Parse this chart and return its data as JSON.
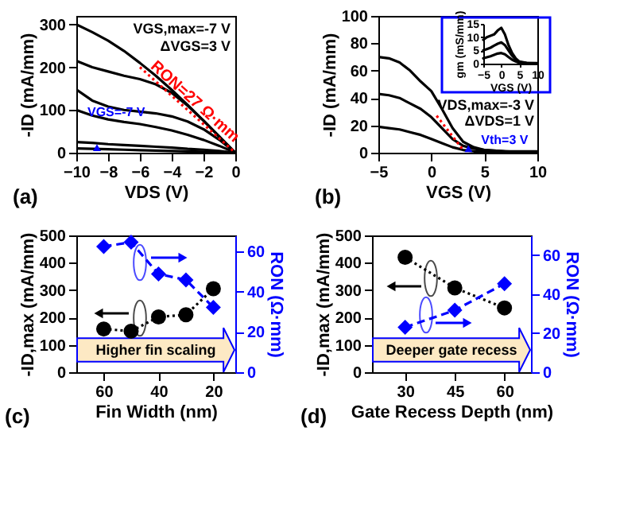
{
  "chart_data": [
    {
      "type": "line",
      "x": [
        -10,
        -9,
        -8,
        -7,
        -6,
        -5,
        -4,
        -3,
        -2,
        -1,
        0
      ],
      "xlim": [
        -10,
        0
      ],
      "xticks": [
        -10,
        -8,
        -6,
        -4,
        -2,
        0
      ],
      "ylim": [
        0,
        320
      ],
      "yticks": [
        0,
        100,
        200,
        300
      ],
      "xlabel": "VDS (V)",
      "ylabel": "-ID (mA/mm)",
      "grid": false,
      "series": [
        {
          "color": "#000000",
          "values": [
            300,
            282,
            262,
            238,
            210,
            180,
            147,
            112,
            75,
            38,
            0
          ]
        },
        {
          "color": "#000000",
          "values": [
            215,
            200,
            190,
            180,
            172,
            160,
            140,
            110,
            75,
            37,
            0
          ]
        },
        {
          "color": "#000000",
          "values": [
            148,
            122,
            108,
            100,
            96,
            92,
            85,
            73,
            55,
            30,
            0
          ]
        },
        {
          "color": "#000000",
          "values": [
            100,
            87,
            78,
            72,
            67,
            60,
            52,
            42,
            30,
            16,
            0
          ]
        },
        {
          "color": "#000000",
          "values": [
            25,
            23,
            20,
            18,
            16,
            14,
            12,
            9,
            7,
            4,
            0
          ]
        },
        {
          "color": "#000000",
          "values": [
            10,
            9,
            8,
            7,
            6,
            5,
            4,
            3,
            2,
            1,
            0
          ]
        },
        {
          "type": "line",
          "name": "RON=27 Ω·mm",
          "color": "#ff0000",
          "line_style": "dotted",
          "x": [
            -6,
            0
          ],
          "values": [
            200,
            0
          ]
        }
      ],
      "annotations": [
        "(a)",
        "VGS,max=-7 V",
        "ΔVGS=3 V",
        {
          "text": "VGS=-7 V",
          "x": -8.7,
          "y": 12
        }
      ]
    },
    {
      "type": "line",
      "x": [
        -5,
        -4,
        -3,
        -2,
        -1,
        0,
        1,
        2,
        3,
        4,
        5,
        7,
        10
      ],
      "xlim": [
        -5,
        10
      ],
      "xticks": [
        -5,
        0,
        5,
        10
      ],
      "ylim": [
        0,
        100
      ],
      "yticks": [
        0,
        20,
        40,
        60,
        80,
        100
      ],
      "xlabel": "VGS (V)",
      "ylabel": "-ID (mA/mm)",
      "grid": false,
      "series": [
        {
          "color": "#000000",
          "values": [
            70,
            69,
            66,
            60,
            52,
            45,
            32,
            18,
            8,
            4,
            2,
            1,
            1
          ]
        },
        {
          "color": "#000000",
          "values": [
            43,
            42,
            40,
            36,
            32,
            26,
            18,
            10,
            5,
            3,
            2,
            1,
            0
          ]
        },
        {
          "color": "#000000",
          "values": [
            19,
            18,
            17,
            15,
            13,
            10,
            7,
            4,
            2,
            1,
            1,
            0,
            0
          ]
        },
        {
          "type": "line",
          "color": "#ff0000",
          "line_style": "dotted",
          "x": [
            0.5,
            3
          ],
          "values": [
            27,
            2
          ]
        }
      ],
      "annotations": [
        "(b)",
        "VDS,max=-3 V",
        "ΔVDS=1 V",
        {
          "text": "Vth=3 V",
          "x": 3.5,
          "y": 3
        }
      ]
    },
    {
      "type": "line",
      "x": [
        -5,
        -4,
        -3,
        -2,
        -1,
        0,
        1,
        2,
        3,
        4,
        5,
        7,
        10
      ],
      "xlim": [
        -5,
        10
      ],
      "xticks": [
        -5,
        0,
        5,
        10
      ],
      "ylim": [
        0,
        15
      ],
      "yticks": [
        0,
        5,
        10,
        15
      ],
      "xlabel": "VGS (V)",
      "ylabel": "gm (mS/mm)",
      "grid": false,
      "series": [
        {
          "color": "#000000",
          "values": [
            9,
            10,
            10.5,
            11,
            12.5,
            13.5,
            11,
            7,
            4,
            2,
            0.8,
            0.3,
            0.2
          ]
        },
        {
          "color": "#000000",
          "values": [
            5,
            5.5,
            6,
            6.8,
            7.5,
            8,
            7,
            5,
            3,
            1.5,
            0.5,
            0.2,
            0.1
          ]
        },
        {
          "color": "#000000",
          "values": [
            2,
            2.4,
            2.8,
            3.3,
            3.8,
            4,
            3.5,
            2.5,
            1.5,
            0.8,
            0.3,
            0.2,
            0.1
          ]
        }
      ]
    },
    {
      "type": "line",
      "x": [
        60,
        50,
        40,
        30,
        20
      ],
      "xlim": [
        70,
        12
      ],
      "xticks": [
        60,
        40,
        20
      ],
      "ylim": [
        0,
        500
      ],
      "yticks": [
        0,
        100,
        200,
        300,
        400,
        500
      ],
      "y2lim": [
        0,
        68
      ],
      "y2ticks": [
        0,
        20,
        40,
        60
      ],
      "xlabel": "Fin Width (nm)",
      "ylabel": "-ID,max (mA/mm)",
      "y2label": "RON (Ω·mm)",
      "grid": false,
      "series": [
        {
          "color": "#000000",
          "marker": "circle",
          "line_style": "dotted",
          "values": [
            158,
            150,
            202,
            210,
            305
          ]
        },
        {
          "color": "#0000ff",
          "marker": "diamond",
          "line_style": "dashed",
          "axis": "y2",
          "values": [
            62.5,
            64.6,
            48.8,
            45.9,
            32.2
          ]
        }
      ],
      "annotations": [
        "(c)",
        "Higher fin scaling"
      ]
    },
    {
      "type": "line",
      "x": [
        30,
        45,
        60
      ],
      "xlim": [
        20,
        68
      ],
      "xticks": [
        30,
        45,
        60
      ],
      "ylim": [
        0,
        500
      ],
      "yticks": [
        0,
        100,
        200,
        300,
        400,
        500
      ],
      "y2lim": [
        0,
        70
      ],
      "y2ticks": [
        0,
        20,
        40,
        60
      ],
      "xlabel": "Gate Recess Depth (nm)",
      "ylabel": "-ID,max (mA/mm)",
      "y2label": "RON (Ω·mm)",
      "grid": false,
      "series": [
        {
          "color": "#000000",
          "marker": "circle",
          "line_style": "dotted",
          "values": [
            420,
            308,
            235
          ]
        },
        {
          "color": "#0000ff",
          "marker": "diamond",
          "line_style": "dashed",
          "axis": "y2",
          "values": [
            23,
            31.7,
            45.3
          ]
        }
      ],
      "annotations": [
        "(d)",
        "Deeper gate recess"
      ]
    }
  ]
}
